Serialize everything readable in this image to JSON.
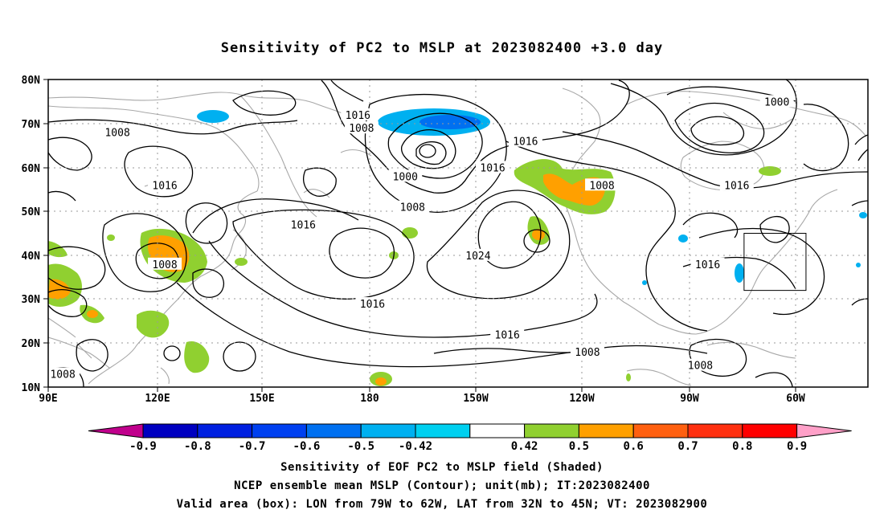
{
  "title": "Sensitivity of PC2 to MSLP at 2023082400 +3.0 day",
  "map": {
    "lat_ticks": [
      "80N",
      "70N",
      "60N",
      "50N",
      "40N",
      "30N",
      "20N",
      "10N"
    ],
    "lon_ticks": [
      "90E",
      "120E",
      "150E",
      "180",
      "150W",
      "120W",
      "90W",
      "60W"
    ],
    "valid_box": {
      "lon_from": "79W",
      "lon_to": "62W",
      "lat_from": "32N",
      "lat_to": "45N"
    },
    "contour_labels": [
      {
        "text": "1016",
        "lon": 175,
        "lat": 72
      },
      {
        "text": "1008",
        "lon": 176,
        "lat": 69
      },
      {
        "text": "1008",
        "lon": 109,
        "lat": 68
      },
      {
        "text": "1016",
        "lon": -139,
        "lat": 66
      },
      {
        "text": "1000",
        "lon": -70,
        "lat": 75
      },
      {
        "text": "1016",
        "lon": -148,
        "lat": 60
      },
      {
        "text": "1000",
        "lon": -172,
        "lat": 58
      },
      {
        "text": "1016",
        "lon": 122,
        "lat": 56
      },
      {
        "text": "1008",
        "lon": -170,
        "lat": 51
      },
      {
        "text": "1008",
        "lon": -118,
        "lat": 56
      },
      {
        "text": "1016",
        "lon": -81,
        "lat": 56
      },
      {
        "text": "1016",
        "lon": 160,
        "lat": 47
      },
      {
        "text": "1024",
        "lon": -152,
        "lat": 40
      },
      {
        "text": "1008",
        "lon": 122,
        "lat": 38
      },
      {
        "text": "1016",
        "lon": -89,
        "lat": 38
      },
      {
        "text": "1016",
        "lon": 179,
        "lat": 29
      },
      {
        "text": "1016",
        "lon": -144,
        "lat": 22
      },
      {
        "text": "1008",
        "lon": -122,
        "lat": 18
      },
      {
        "text": "1008",
        "lon": -91,
        "lat": 15
      },
      {
        "text": "1008",
        "lon": 94,
        "lat": 13
      }
    ]
  },
  "colorbar": {
    "labels": [
      "-0.9",
      "-0.8",
      "-0.7",
      "-0.6",
      "-0.5",
      "-0.42",
      "0.42",
      "0.5",
      "0.6",
      "0.7",
      "0.8",
      "0.9"
    ],
    "colors": [
      "#c0008c",
      "#0000c0",
      "#0020e0",
      "#0040f0",
      "#0070f0",
      "#00b0f0",
      "#00d0f0",
      "#ffffff",
      "#90d030",
      "#ffa000",
      "#ff6010",
      "#ff3010",
      "#ff0000",
      "#ffa0c8"
    ]
  },
  "captions": {
    "line1": "Sensitivity of EOF PC2 to MSLP field (Shaded)",
    "line2": "NCEP ensemble mean MSLP (Contour); unit(mb); IT:2023082400",
    "line3": "Valid area (box): LON from 79W to 62W, LAT from 32N to 45N; VT: 2023082900"
  }
}
